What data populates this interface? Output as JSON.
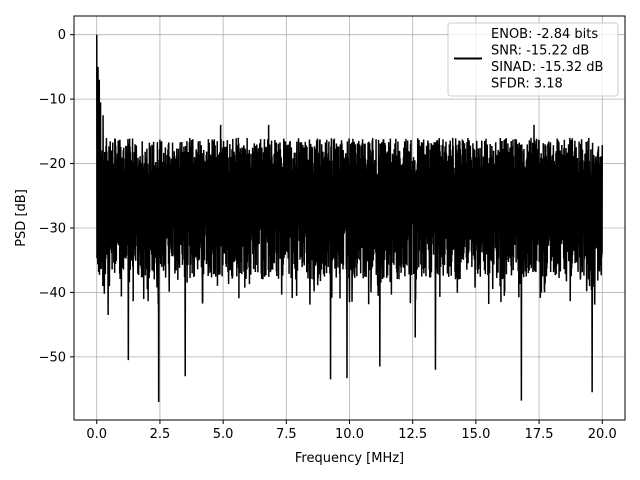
{
  "chart_data": {
    "type": "line",
    "xlabel": "Frequency [MHz]",
    "ylabel": "PSD [dB]",
    "xlim": [
      -0.9,
      20.9
    ],
    "ylim": [
      -59.8,
      2.9
    ],
    "xticks": [
      0.0,
      2.5,
      5.0,
      7.5,
      10.0,
      12.5,
      15.0,
      17.5,
      20.0
    ],
    "xtick_labels": [
      "0.0",
      "2.5",
      "5.0",
      "7.5",
      "10.0",
      "12.5",
      "15.0",
      "17.5",
      "20.0"
    ],
    "yticks": [
      0,
      -10,
      -20,
      -30,
      -40,
      -50
    ],
    "ytick_labels": [
      "0",
      "−10",
      "−20",
      "−30",
      "−40",
      "−50"
    ],
    "grid": true,
    "legend": {
      "placement": "top-right",
      "entries": [
        "ENOB: -2.84 bits",
        "SNR: -15.22 dB",
        "SINAD: -15.32 dB",
        "SFDR: 3.18"
      ]
    },
    "series": [
      {
        "color": "#000000",
        "x_range": [
          0.0,
          20.0
        ],
        "noise_floor_median_db": -26,
        "typical_range_db": [
          -38,
          -16
        ],
        "peaks": [
          {
            "x": 0.0,
            "y": 0.0
          },
          {
            "x": 0.05,
            "y": -5.0
          },
          {
            "x": 0.1,
            "y": -7.0
          },
          {
            "x": 0.15,
            "y": -10.5
          },
          {
            "x": 0.25,
            "y": -12.5
          },
          {
            "x": 4.9,
            "y": -14.0
          },
          {
            "x": 6.8,
            "y": -14.0
          },
          {
            "x": 13.4,
            "y": -14.0
          },
          {
            "x": 17.3,
            "y": -14.0
          }
        ],
        "dips": [
          {
            "x": 0.45,
            "y": -43.5
          },
          {
            "x": 1.25,
            "y": -50.5
          },
          {
            "x": 2.45,
            "y": -57.0
          },
          {
            "x": 3.5,
            "y": -53.0
          },
          {
            "x": 9.25,
            "y": -53.5
          },
          {
            "x": 9.9,
            "y": -53.3
          },
          {
            "x": 11.2,
            "y": -51.5
          },
          {
            "x": 12.6,
            "y": -47.0
          },
          {
            "x": 13.4,
            "y": -52.0
          },
          {
            "x": 16.8,
            "y": -56.8
          },
          {
            "x": 19.6,
            "y": -55.5
          }
        ]
      }
    ]
  }
}
